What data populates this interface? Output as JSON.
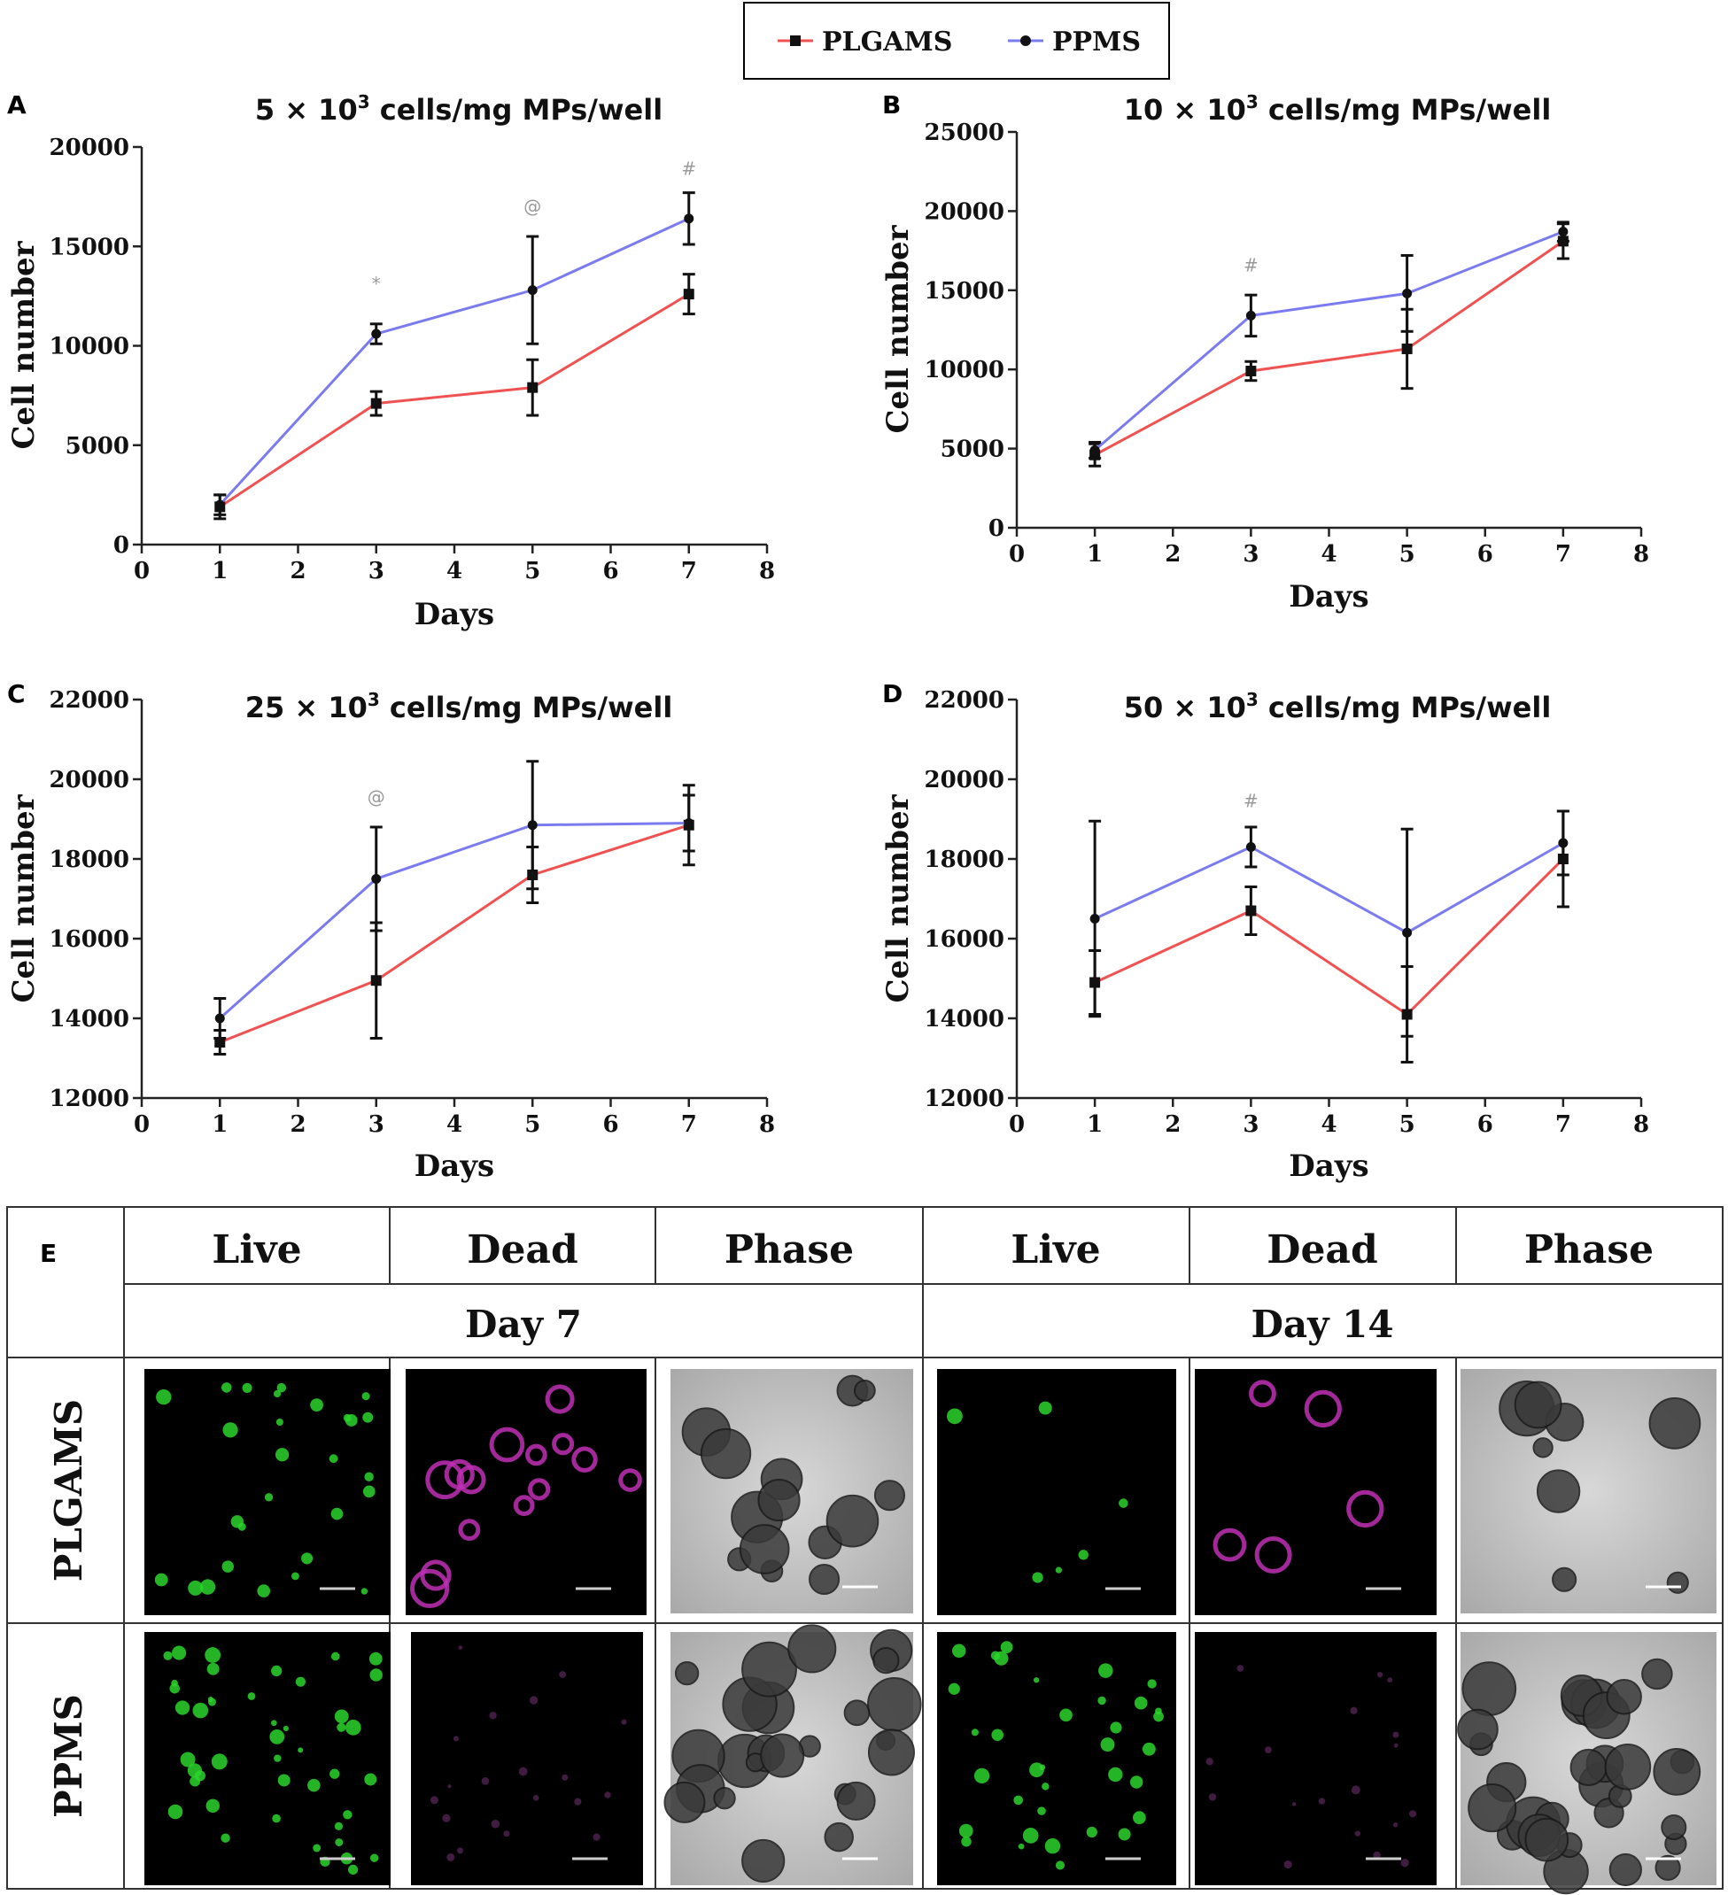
{
  "legend": {
    "position": "top-center",
    "entries": [
      {
        "label": "PLGAMS",
        "color": "#f05252",
        "marker": "square"
      },
      {
        "label": "PPMS",
        "color": "#7b7bf0",
        "marker": "circle"
      }
    ]
  },
  "chart_data": [
    {
      "panel": "A",
      "type": "line",
      "title_prefix": "5 × 10",
      "title_sup": "3",
      "title_suffix": " cells/mg MPs/well",
      "xlabel": "Days",
      "ylabel": "Cell number",
      "xlim": [
        0,
        8
      ],
      "ylim": [
        0,
        20000
      ],
      "xticks": [
        0,
        1,
        2,
        3,
        4,
        5,
        6,
        7,
        8
      ],
      "yticks": [
        0,
        5000,
        10000,
        15000,
        20000
      ],
      "x": [
        1,
        3,
        5,
        7
      ],
      "series": [
        {
          "name": "PLGAMS",
          "values": [
            1900,
            7100,
            7900,
            12600
          ],
          "errors": [
            600,
            600,
            1400,
            1000
          ]
        },
        {
          "name": "PPMS",
          "values": [
            2000,
            10600,
            12800,
            16400
          ],
          "errors": [
            500,
            500,
            2700,
            1300
          ]
        }
      ],
      "annotations": [
        {
          "x": 3,
          "y": 12800,
          "text": "*"
        },
        {
          "x": 5,
          "y": 16700,
          "text": "@"
        },
        {
          "x": 7,
          "y": 18600,
          "text": "#"
        }
      ]
    },
    {
      "panel": "B",
      "type": "line",
      "title_prefix": "10 × 10",
      "title_sup": "3",
      "title_suffix": " cells/mg MPs/well",
      "xlabel": "Days",
      "ylabel": "Cell number",
      "xlim": [
        0,
        8
      ],
      "ylim": [
        0,
        25000
      ],
      "xticks": [
        0,
        1,
        2,
        3,
        4,
        5,
        6,
        7,
        8
      ],
      "yticks": [
        0,
        5000,
        10000,
        15000,
        20000,
        25000
      ],
      "x": [
        1,
        3,
        5,
        7
      ],
      "series": [
        {
          "name": "PLGAMS",
          "values": [
            4600,
            9900,
            11300,
            18100
          ],
          "errors": [
            700,
            600,
            2500,
            1100
          ]
        },
        {
          "name": "PPMS",
          "values": [
            4900,
            13400,
            14800,
            18700
          ],
          "errors": [
            500,
            1300,
            2400,
            600
          ]
        }
      ],
      "annotations": [
        {
          "x": 3,
          "y": 16200,
          "text": "#"
        }
      ]
    },
    {
      "panel": "C",
      "type": "line",
      "title_prefix": "25 × 10",
      "title_sup": "3",
      "title_suffix": " cells/mg MPs/well",
      "xlabel": "Days",
      "ylabel": "Cell number",
      "xlim": [
        0,
        8
      ],
      "ylim": [
        12000,
        22000
      ],
      "xticks": [
        0,
        1,
        2,
        3,
        4,
        5,
        6,
        7,
        8
      ],
      "yticks": [
        12000,
        14000,
        16000,
        18000,
        20000,
        22000
      ],
      "x": [
        1,
        3,
        5,
        7
      ],
      "series": [
        {
          "name": "PLGAMS",
          "values": [
            13400,
            14950,
            17600,
            18850
          ],
          "errors": [
            300,
            1450,
            700,
            1000
          ]
        },
        {
          "name": "PPMS",
          "values": [
            14000,
            17500,
            18850,
            18900
          ],
          "errors": [
            500,
            1300,
            1600,
            700
          ]
        }
      ],
      "annotations": [
        {
          "x": 3,
          "y": 19400,
          "text": "@"
        }
      ]
    },
    {
      "panel": "D",
      "type": "line",
      "title_prefix": "50 × 10",
      "title_sup": "3",
      "title_suffix": " cells/mg MPs/well",
      "xlabel": "Days",
      "ylabel": "Cell number",
      "xlim": [
        0,
        8
      ],
      "ylim": [
        12000,
        22000
      ],
      "xticks": [
        0,
        1,
        2,
        3,
        4,
        5,
        6,
        7,
        8
      ],
      "yticks": [
        12000,
        14000,
        16000,
        18000,
        20000,
        22000
      ],
      "x": [
        1,
        3,
        5,
        7
      ],
      "series": [
        {
          "name": "PLGAMS",
          "values": [
            14900,
            16700,
            14100,
            18000
          ],
          "errors": [
            800,
            600,
            1200,
            1200
          ]
        },
        {
          "name": "PPMS",
          "values": [
            16500,
            18300,
            16150,
            18400
          ],
          "errors": [
            2450,
            500,
            2600,
            800
          ]
        }
      ],
      "annotations": [
        {
          "x": 3,
          "y": 19300,
          "text": "#"
        }
      ]
    }
  ],
  "panel_e": {
    "label": "E",
    "column_headers": [
      "Live",
      "Dead",
      "Phase",
      "Live",
      "Dead",
      "Phase"
    ],
    "group_headers": [
      "Day 7",
      "Day 14"
    ],
    "row_labels": [
      "PLGAMS",
      "PPMS"
    ]
  }
}
